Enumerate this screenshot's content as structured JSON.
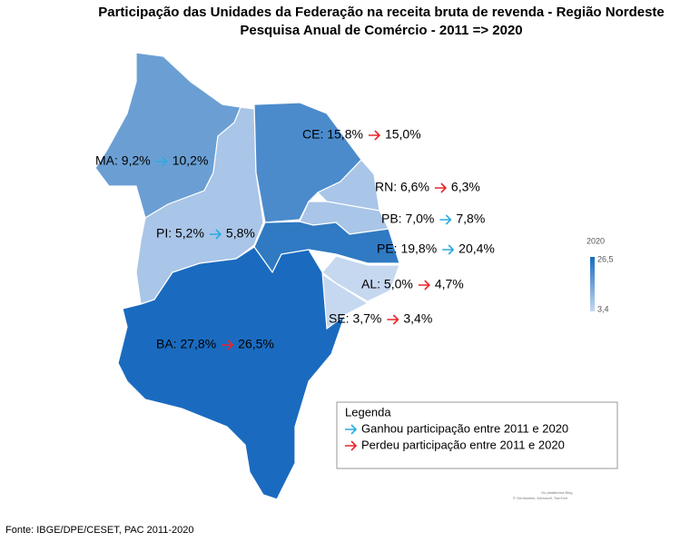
{
  "header": {
    "title": "Participação das Unidades da Federação na receita bruta de revenda - Região Nordeste",
    "subtitle": "Pesquisa Anual de Comércio - 2011 => 2020"
  },
  "states": [
    {
      "label": "MA: 9,2%",
      "after": "10,2%",
      "fill": "#6b9fd4",
      "arrow_color": "#29abe2"
    },
    {
      "label": "PI: 5,2%",
      "after": "5,8%",
      "fill": "#a9c5e8",
      "arrow_color": "#29abe2"
    },
    {
      "label": "CE: 15,8%",
      "after": "15,0%",
      "fill": "#4b8bcc",
      "arrow_color": "#e8262b"
    },
    {
      "label": "RN: 6,6%",
      "after": "6,3%",
      "fill": "#a9c5e8",
      "arrow_color": "#e8262b"
    },
    {
      "label": "PB: 7,0%",
      "after": "7,8%",
      "fill": "#a9c5e8",
      "arrow_color": "#29abe2"
    },
    {
      "label": "PE: 19,8%",
      "after": "20,4%",
      "fill": "#2f7ac2",
      "arrow_color": "#29abe2"
    },
    {
      "label": "AL: 5,0%",
      "after": "4,7%",
      "fill": "#c6d8f0",
      "arrow_color": "#e8262b"
    },
    {
      "label": "SE: 3,7%",
      "after": "3,4%",
      "fill": "#c6d8f0",
      "arrow_color": "#e8262b"
    },
    {
      "label": "BA: 27,8%",
      "after": "26,5%",
      "fill": "#1a6bbf",
      "arrow_color": "#e8262b"
    }
  ],
  "color_scale": {
    "title": "2020",
    "max": "26,5",
    "min": "3,4",
    "color_high": "#1a6bbf",
    "color_low": "#c6d8f0"
  },
  "legend": {
    "title": "Legenda",
    "items": [
      {
        "text": "Ganhou participação  entre 2011 e 2020",
        "arrow_color": "#29abe2"
      },
      {
        "text": "Perdeu participação  entre 2011 e 2020",
        "arrow_color": "#e8262b"
      }
    ]
  },
  "attribution": [
    "Go plataforma Bing",
    "© GeoNames, Microsoft, TomTom"
  ],
  "source": "Fonte: IBGE/DPE/CESET,  PAC 2011-2020"
}
